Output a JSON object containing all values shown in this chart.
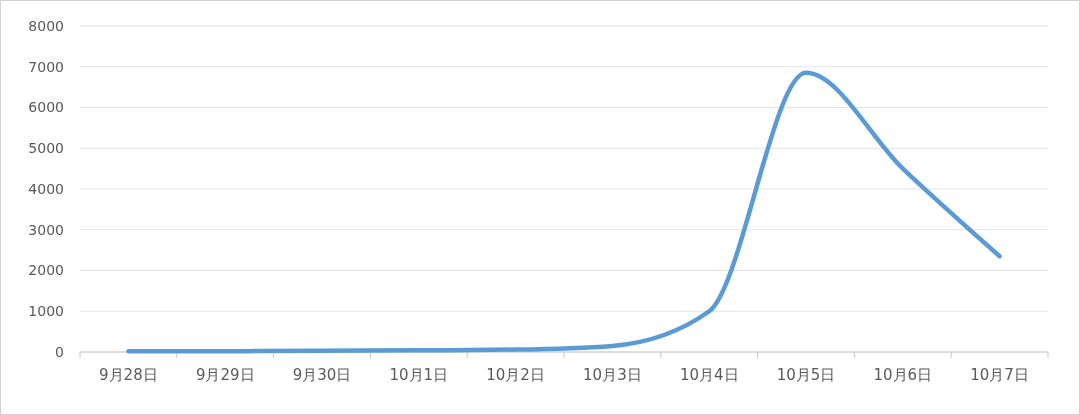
{
  "chart_data": {
    "type": "line",
    "categories": [
      "9月28日",
      "9月29日",
      "9月30日",
      "10月1日",
      "10月2日",
      "10月3日",
      "10月4日",
      "10月5日",
      "10月6日",
      "10月7日"
    ],
    "series": [
      {
        "color": "#5b9bd5",
        "values": [
          20,
          20,
          30,
          40,
          60,
          150,
          1000,
          6850,
          4500,
          2350
        ]
      }
    ],
    "ylim": [
      0,
      8000
    ],
    "yticks": [
      0,
      1000,
      2000,
      3000,
      4000,
      5000,
      6000,
      7000,
      8000
    ],
    "grid": "y",
    "marker": "none",
    "line_style": "solid"
  }
}
